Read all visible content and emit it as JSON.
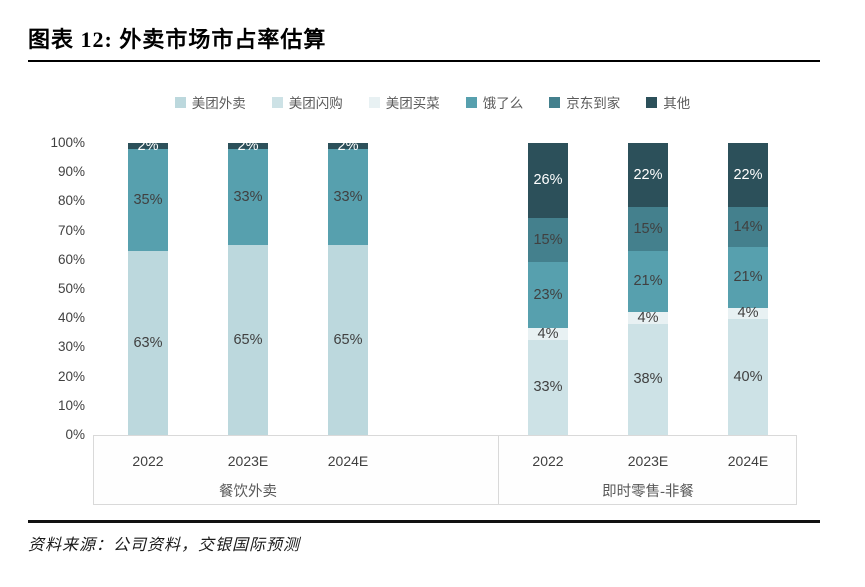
{
  "title": "图表 12: 外卖市场市占率估算",
  "source": "资料来源：公司资料，交银国际预测",
  "colors": {
    "label_dark": "#404040",
    "label_light": "#ffffff",
    "axis_text": "#404040",
    "legend_text": "#5a5a5a",
    "box_border": "#d9d9d9",
    "rule": "#000000"
  },
  "legend": [
    {
      "label": "美团外卖",
      "color": "#bcd8dd"
    },
    {
      "label": "美团闪购",
      "color": "#cde2e6"
    },
    {
      "label": "美团买菜",
      "color": "#e8f1f3"
    },
    {
      "label": "饿了么",
      "color": "#57a0ae"
    },
    {
      "label": "京东到家",
      "color": "#44808d"
    },
    {
      "label": "其他",
      "color": "#2c505a"
    }
  ],
  "y_axis": {
    "ticks": [
      "100%",
      "90%",
      "80%",
      "70%",
      "60%",
      "50%",
      "40%",
      "30%",
      "20%",
      "10%",
      "0%"
    ]
  },
  "chart_data": {
    "type": "bar",
    "stacked": true,
    "unit": "%",
    "ylim": [
      0,
      100
    ],
    "grid": false,
    "legend_position": "top",
    "groups": [
      {
        "name": "餐饮外卖",
        "categories": [
          "2022",
          "2023E",
          "2024E"
        ],
        "series": [
          {
            "name": "美团外卖",
            "values": [
              63,
              65,
              65
            ]
          },
          {
            "name": "饿了么",
            "values": [
              35,
              33,
              33
            ]
          },
          {
            "name": "其他",
            "values": [
              2,
              2,
              2
            ],
            "label_light": true
          }
        ]
      },
      {
        "name": "即时零售-非餐",
        "categories": [
          "2022",
          "2023E",
          "2024E"
        ],
        "series": [
          {
            "name": "美团闪购",
            "values": [
              33,
              38,
              40
            ]
          },
          {
            "name": "美团买菜",
            "values": [
              4,
              4,
              4
            ]
          },
          {
            "name": "饿了么",
            "values": [
              23,
              21,
              21
            ]
          },
          {
            "name": "京东到家",
            "values": [
              15,
              15,
              14
            ]
          },
          {
            "name": "其他",
            "values": [
              26,
              22,
              22
            ],
            "label_light": true
          }
        ]
      }
    ]
  }
}
